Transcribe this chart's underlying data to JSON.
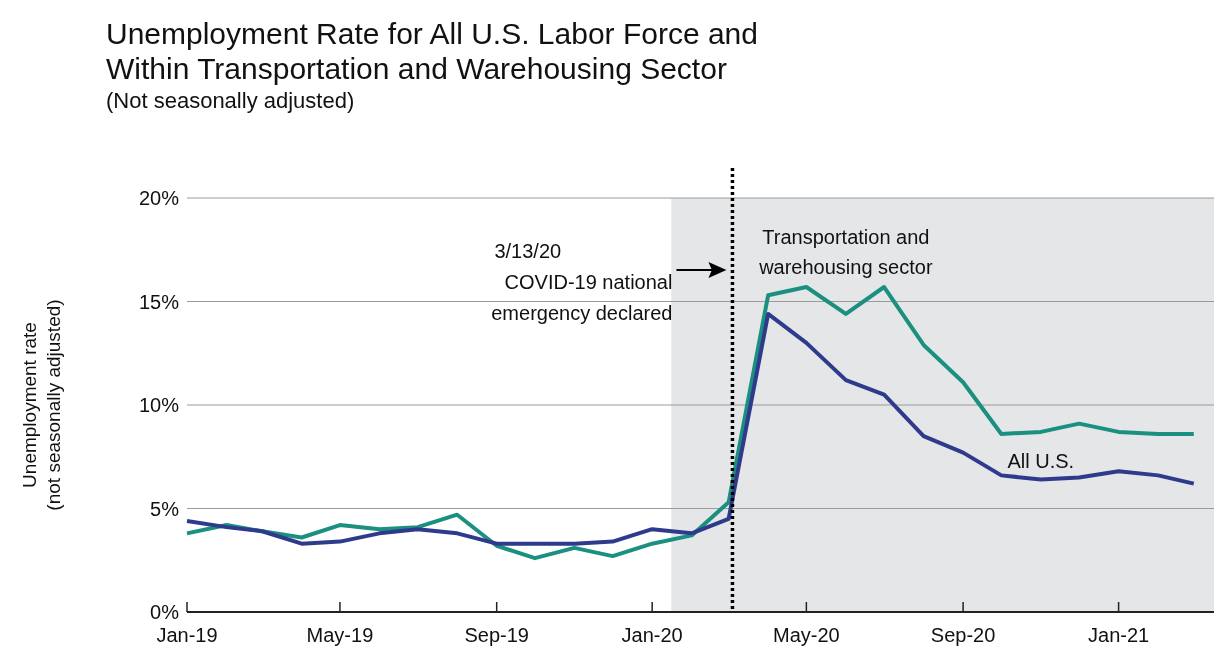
{
  "chart_data": {
    "type": "line",
    "title": "Unemployment Rate for All U.S. Labor Force and\nWithin Transportation and Warehousing Sector",
    "subtitle": "(Not seasonally adjusted)",
    "ylabel": "Unemployment rate\n(not seasonally adjusted)",
    "x": [
      "2019-01",
      "2019-02",
      "2019-03",
      "2019-04",
      "2019-05",
      "2019-06",
      "2019-07",
      "2019-08",
      "2019-09",
      "2019-10",
      "2019-11",
      "2019-12",
      "2020-01",
      "2020-02",
      "2020-03",
      "2020-04",
      "2020-05",
      "2020-06",
      "2020-07",
      "2020-08",
      "2020-09",
      "2020-10",
      "2020-11",
      "2020-12",
      "2021-01",
      "2021-02",
      "2021-03"
    ],
    "series": [
      {
        "name": "Transportation and warehousing sector",
        "color": "#1b9080",
        "values": [
          3.8,
          4.2,
          3.9,
          3.6,
          4.2,
          4.0,
          4.1,
          4.7,
          3.2,
          2.6,
          3.1,
          2.7,
          3.3,
          3.7,
          5.3,
          15.3,
          15.7,
          14.4,
          15.7,
          12.9,
          11.1,
          8.6,
          8.7,
          9.1,
          8.7,
          8.6,
          8.6
        ]
      },
      {
        "name": "All U.S.",
        "color": "#2e3a8c",
        "values": [
          4.4,
          4.1,
          3.9,
          3.3,
          3.4,
          3.8,
          4.0,
          3.8,
          3.3,
          3.3,
          3.3,
          3.4,
          4.0,
          3.8,
          4.5,
          14.4,
          13.0,
          11.2,
          10.5,
          8.5,
          7.7,
          6.6,
          6.4,
          6.5,
          6.8,
          6.6,
          6.2
        ]
      }
    ],
    "xlim": [
      "2019-01-01",
      "2021-03-20"
    ],
    "xticks": [
      {
        "value": "2019-01",
        "label": "Jan-19"
      },
      {
        "value": "2019-05",
        "label": "May-19"
      },
      {
        "value": "2019-09",
        "label": "Sep-19"
      },
      {
        "value": "2020-01",
        "label": "Jan-20"
      },
      {
        "value": "2020-05",
        "label": "May-20"
      },
      {
        "value": "2020-09",
        "label": "Sep-20"
      },
      {
        "value": "2021-01",
        "label": "Jan-21"
      }
    ],
    "ylim": [
      0,
      20
    ],
    "yticks": [
      {
        "value": 0,
        "label": "0%"
      },
      {
        "value": 5,
        "label": "5%"
      },
      {
        "value": 10,
        "label": "10%"
      },
      {
        "value": 15,
        "label": "15%"
      },
      {
        "value": 20,
        "label": "20%"
      }
    ],
    "grid": "y",
    "line_style": "solid",
    "marker": "none",
    "ref_lines": [
      {
        "axis": "x",
        "value": "2020-03-04",
        "label": "3/13/20\nCOVID-19 national\nemergency declared",
        "color": "#000000",
        "line_style": "dotted"
      }
    ],
    "bands": [
      {
        "axis": "x",
        "from": "2020-01-16",
        "to": "2021-03-20",
        "color": "#e5e6e8"
      }
    ]
  }
}
